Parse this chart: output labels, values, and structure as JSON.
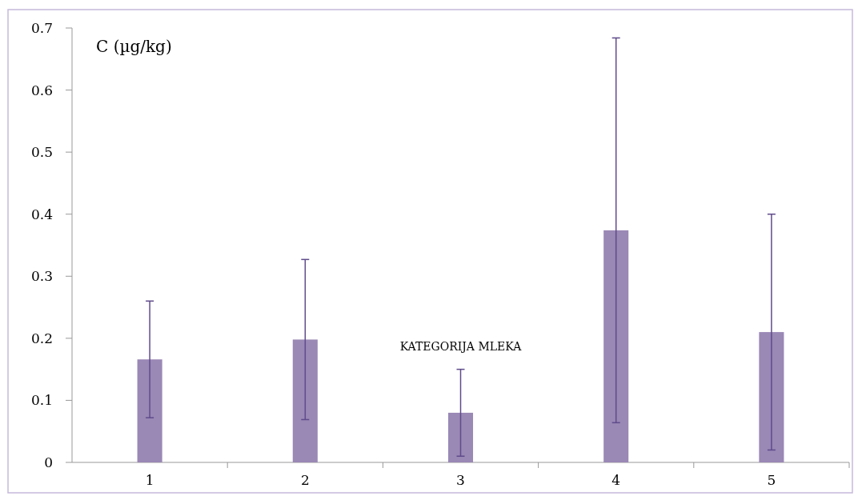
{
  "chart_data": {
    "type": "bar",
    "ylabel": "C (µg/kg)",
    "xlabel": "KATEGORIJA MLEKA",
    "categories": [
      "1",
      "2",
      "3",
      "4",
      "5"
    ],
    "values": [
      0.166,
      0.198,
      0.08,
      0.374,
      0.21
    ],
    "errors": [
      0.094,
      0.129,
      0.07,
      0.31,
      0.19
    ],
    "color": "#9a88b5",
    "ylim": [
      0,
      0.7
    ],
    "yticks": [
      {
        "value": 0,
        "label": "0"
      },
      0.1,
      0.2,
      0.3,
      0.4,
      0.5,
      0.6,
      0.7
    ],
    "grid": false
  }
}
